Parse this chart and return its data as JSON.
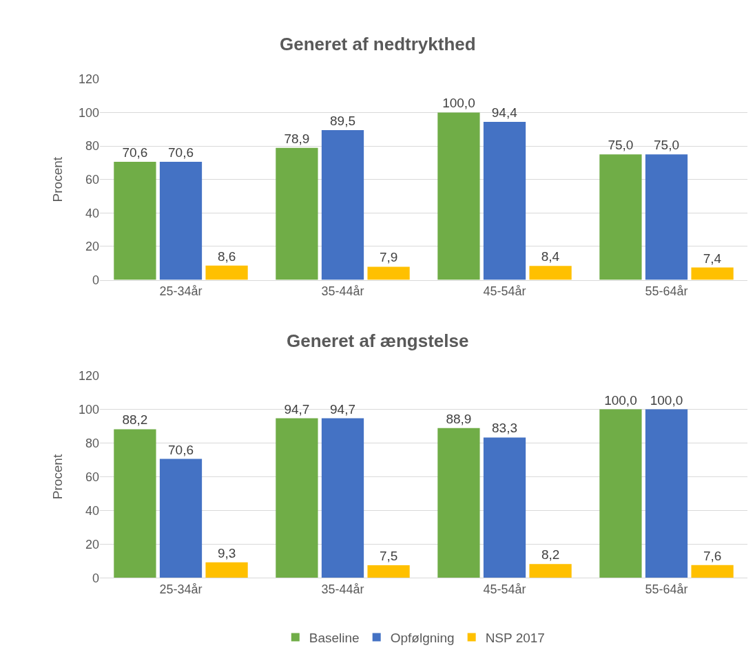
{
  "chart_data": [
    {
      "type": "bar",
      "title": "Generet af nedtrykthed",
      "ylabel": "Procent",
      "categories": [
        "25-34år",
        "35-44år",
        "45-54år",
        "55-64år"
      ],
      "series": [
        {
          "name": "Baseline",
          "color": "#70ad47",
          "values": [
            70.6,
            78.9,
            100.0,
            75.0
          ],
          "value_labels": [
            "70,6",
            "78,9",
            "100,0",
            "75,0"
          ]
        },
        {
          "name": "Opfølgning",
          "color": "#4472c4",
          "values": [
            70.6,
            89.5,
            94.4,
            75.0
          ],
          "value_labels": [
            "70,6",
            "89,5",
            "94,4",
            "75,0"
          ]
        },
        {
          "name": "NSP 2017",
          "color": "#ffc000",
          "values": [
            8.6,
            7.9,
            8.4,
            7.4
          ],
          "value_labels": [
            "8,6",
            "7,9",
            "8,4",
            "7,4"
          ]
        }
      ],
      "ylim": [
        0,
        120
      ],
      "yticks": [
        0,
        20,
        40,
        60,
        80,
        100,
        120
      ],
      "grid": "y",
      "legend": "bottom"
    },
    {
      "type": "bar",
      "title": "Generet af ængstelse",
      "ylabel": "Procent",
      "categories": [
        "25-34år",
        "35-44år",
        "45-54år",
        "55-64år"
      ],
      "series": [
        {
          "color": "#70ad47",
          "values": [
            88.2,
            94.7,
            88.9,
            100.0
          ],
          "value_labels": [
            "88,2",
            "94,7",
            "88,9",
            "100,0"
          ]
        },
        {
          "color": "#4472c4",
          "values": [
            70.6,
            94.7,
            83.3,
            100.0
          ],
          "value_labels": [
            "70,6",
            "94,7",
            "83,3",
            "100,0"
          ]
        },
        {
          "color": "#ffc000",
          "values": [
            9.3,
            7.5,
            8.2,
            7.6
          ],
          "value_labels": [
            "9,3",
            "7,5",
            "8,2",
            "7,6"
          ]
        }
      ],
      "ylim": [
        0,
        120
      ],
      "yticks": [
        0,
        20,
        40,
        60,
        80,
        100,
        120
      ],
      "grid": "y"
    }
  ]
}
